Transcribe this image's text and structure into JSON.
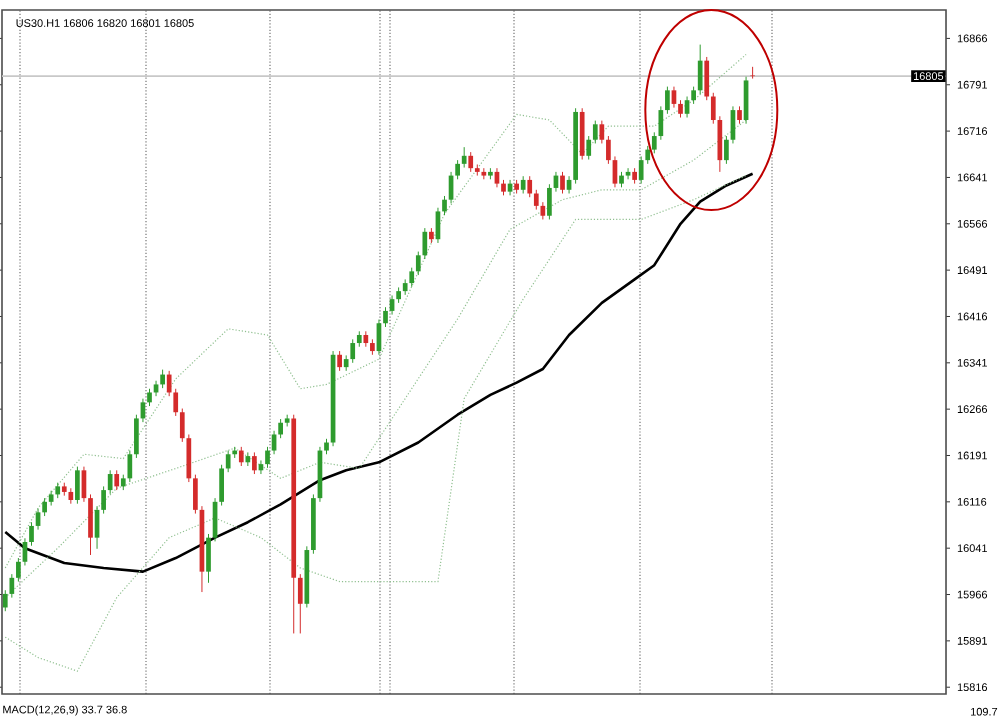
{
  "chart_data": {
    "type": "candlestick",
    "title": "US30.H1 16806 16820 16801 16805",
    "annotations": [
      "MACD(12,26,9) 33.7 36.8",
      "109.7"
    ],
    "categories": [
      null,
      null,
      null,
      null,
      null,
      null,
      null,
      null,
      null,
      null,
      null,
      null,
      null,
      null,
      null,
      null,
      null,
      null,
      null,
      null,
      null,
      null,
      null,
      null,
      null,
      null,
      null,
      null,
      null,
      null,
      null,
      null,
      null,
      null,
      null,
      null,
      null,
      null,
      null,
      null,
      null,
      null,
      null,
      null,
      null,
      null,
      null,
      null,
      null,
      null,
      null,
      null,
      null,
      null,
      null,
      null,
      null,
      null,
      null,
      null,
      null,
      null,
      null,
      null,
      null,
      null,
      null,
      null,
      null,
      null,
      null,
      null,
      null,
      null,
      null,
      null,
      null,
      null,
      null,
      null,
      null,
      null,
      null,
      null,
      null,
      null,
      null,
      null,
      null,
      null,
      null,
      null,
      null,
      null,
      null,
      null,
      null,
      null,
      null,
      null,
      null,
      null,
      null,
      null,
      null,
      null,
      null,
      null,
      null,
      null,
      null,
      null,
      null,
      null,
      null,
      null,
      null,
      null,
      null,
      null,
      null,
      null,
      null,
      null,
      null,
      null,
      null,
      null,
      null,
      null,
      null,
      null,
      null,
      null,
      null,
      null,
      null,
      null,
      null,
      null,
      null,
      null,
      null,
      null
    ],
    "ylim": [
      15805,
      16912
    ],
    "yticks": [
      15816,
      15891,
      15966,
      16041,
      16116,
      16191,
      16266,
      16341,
      16416,
      16491,
      16566,
      16641,
      16716,
      16791,
      16866
    ],
    "ref_lines": [
      {
        "axis": "y",
        "value": 16805,
        "label": "16805",
        "color": "#c8c8c8"
      }
    ],
    "ohlc": [
      [
        15945,
        15973,
        15939,
        15967
      ],
      [
        15967,
        15999,
        15961,
        15993
      ],
      [
        15993,
        16025,
        15987,
        16019
      ],
      [
        16019,
        16057,
        16013,
        16051
      ],
      [
        16051,
        16083,
        16045,
        16077
      ],
      [
        16077,
        16105,
        16071,
        16099
      ],
      [
        16099,
        16122,
        16093,
        16116
      ],
      [
        16116,
        16134,
        16110,
        16128
      ],
      [
        16128,
        16147,
        16122,
        16141
      ],
      [
        16141,
        16147,
        16126,
        16132
      ],
      [
        16132,
        16138,
        16113,
        16119
      ],
      [
        16119,
        16173,
        16113,
        16167
      ],
      [
        16167,
        16173,
        16116,
        16122
      ],
      [
        16122,
        16128,
        16030,
        16058
      ],
      [
        16058,
        16109,
        16040,
        16103
      ],
      [
        16103,
        16141,
        16097,
        16135
      ],
      [
        16135,
        16167,
        16129,
        16161
      ],
      [
        16161,
        16167,
        16135,
        16141
      ],
      [
        16141,
        16160,
        16135,
        16154
      ],
      [
        16154,
        16199,
        16148,
        16193
      ],
      [
        16193,
        16257,
        16187,
        16251
      ],
      [
        16251,
        16283,
        16245,
        16277
      ],
      [
        16277,
        16299,
        16271,
        16293
      ],
      [
        16293,
        16312,
        16287,
        16306
      ],
      [
        16306,
        16330,
        16300,
        16322
      ],
      [
        16322,
        16328,
        16287,
        16293
      ],
      [
        16293,
        16299,
        16255,
        16261
      ],
      [
        16261,
        16267,
        16213,
        16219
      ],
      [
        16219,
        16225,
        16148,
        16154
      ],
      [
        16154,
        16160,
        16097,
        16103
      ],
      [
        16103,
        16109,
        15970,
        16003
      ],
      [
        16003,
        16064,
        15985,
        16058
      ],
      [
        16058,
        16122,
        16052,
        16116
      ],
      [
        16116,
        16176,
        16110,
        16170
      ],
      [
        16170,
        16199,
        16164,
        16193
      ],
      [
        16193,
        16205,
        16187,
        16199
      ],
      [
        16199,
        16205,
        16174,
        16180
      ],
      [
        16180,
        16196,
        16174,
        16190
      ],
      [
        16190,
        16196,
        16161,
        16167
      ],
      [
        16167,
        16183,
        16161,
        16177
      ],
      [
        16177,
        16205,
        16171,
        16199
      ],
      [
        16199,
        16231,
        16193,
        16225
      ],
      [
        16225,
        16250,
        16219,
        16244
      ],
      [
        16244,
        16257,
        16238,
        16251
      ],
      [
        16251,
        16257,
        15903,
        15993
      ],
      [
        15993,
        15999,
        15903,
        15951
      ],
      [
        15951,
        16044,
        15945,
        16038
      ],
      [
        16038,
        16128,
        16032,
        16122
      ],
      [
        16122,
        16205,
        16116,
        16199
      ],
      [
        16199,
        16218,
        16193,
        16212
      ],
      [
        16212,
        16360,
        16206,
        16354
      ],
      [
        16354,
        16360,
        16328,
        16334
      ],
      [
        16334,
        16353,
        16328,
        16347
      ],
      [
        16347,
        16379,
        16341,
        16373
      ],
      [
        16373,
        16392,
        16367,
        16386
      ],
      [
        16386,
        16392,
        16367,
        16373
      ],
      [
        16373,
        16379,
        16354,
        16360
      ],
      [
        16360,
        16411,
        16354,
        16405
      ],
      [
        16405,
        16431,
        16399,
        16425
      ],
      [
        16425,
        16450,
        16419,
        16444
      ],
      [
        16444,
        16463,
        16438,
        16457
      ],
      [
        16457,
        16476,
        16451,
        16470
      ],
      [
        16470,
        16495,
        16464,
        16489
      ],
      [
        16489,
        16521,
        16483,
        16515
      ],
      [
        16515,
        16559,
        16509,
        16553
      ],
      [
        16553,
        16559,
        16535,
        16541
      ],
      [
        16541,
        16592,
        16535,
        16586
      ],
      [
        16586,
        16611,
        16580,
        16605
      ],
      [
        16605,
        16650,
        16599,
        16644
      ],
      [
        16644,
        16669,
        16638,
        16663
      ],
      [
        16663,
        16690,
        16657,
        16676
      ],
      [
        16676,
        16682,
        16650,
        16656
      ],
      [
        16656,
        16662,
        16644,
        16650
      ],
      [
        16650,
        16656,
        16638,
        16644
      ],
      [
        16644,
        16656,
        16638,
        16650
      ],
      [
        16650,
        16656,
        16625,
        16631
      ],
      [
        16631,
        16637,
        16612,
        16618
      ],
      [
        16618,
        16637,
        16612,
        16631
      ],
      [
        16631,
        16637,
        16615,
        16621
      ],
      [
        16621,
        16643,
        16615,
        16637
      ],
      [
        16637,
        16643,
        16609,
        16615
      ],
      [
        16615,
        16621,
        16589,
        16595
      ],
      [
        16595,
        16601,
        16573,
        16579
      ],
      [
        16579,
        16630,
        16573,
        16624
      ],
      [
        16624,
        16650,
        16618,
        16644
      ],
      [
        16644,
        16650,
        16615,
        16621
      ],
      [
        16621,
        16643,
        16615,
        16637
      ],
      [
        16637,
        16753,
        16631,
        16747
      ],
      [
        16747,
        16753,
        16670,
        16676
      ],
      [
        16676,
        16708,
        16670,
        16702
      ],
      [
        16702,
        16733,
        16696,
        16727
      ],
      [
        16727,
        16733,
        16696,
        16702
      ],
      [
        16702,
        16708,
        16663,
        16669
      ],
      [
        16669,
        16675,
        16625,
        16631
      ],
      [
        16631,
        16650,
        16625,
        16644
      ],
      [
        16644,
        16656,
        16638,
        16650
      ],
      [
        16650,
        16656,
        16631,
        16637
      ],
      [
        16637,
        16675,
        16631,
        16669
      ],
      [
        16669,
        16692,
        16663,
        16686
      ],
      [
        16686,
        16714,
        16680,
        16708
      ],
      [
        16708,
        16756,
        16702,
        16750
      ],
      [
        16750,
        16788,
        16744,
        16782
      ],
      [
        16782,
        16788,
        16754,
        16760
      ],
      [
        16760,
        16766,
        16738,
        16744
      ],
      [
        16744,
        16772,
        16738,
        16766
      ],
      [
        16766,
        16788,
        16760,
        16782
      ],
      [
        16782,
        16856,
        16776,
        16830
      ],
      [
        16830,
        16836,
        16766,
        16772
      ],
      [
        16772,
        16778,
        16728,
        16734
      ],
      [
        16734,
        16740,
        16650,
        16669
      ],
      [
        16669,
        16708,
        16663,
        16702
      ],
      [
        16702,
        16756,
        16696,
        16750
      ],
      [
        16750,
        16756,
        16728,
        16734
      ],
      [
        16734,
        16804,
        16728,
        16798
      ],
      [
        16806,
        16820,
        16801,
        16805
      ],
      null,
      null,
      null,
      null,
      null,
      null,
      null,
      null,
      null,
      null,
      null,
      null,
      null,
      null,
      null,
      null,
      null,
      null,
      null,
      null,
      null,
      null,
      null,
      null,
      null,
      null,
      null,
      null,
      null
    ],
    "colors": [
      "#2e9b2e",
      "#2e9b2e",
      "#2e9b2e",
      "#2e9b2e",
      "#2e9b2e",
      "#2e9b2e",
      "#2e9b2e",
      "#2e9b2e",
      "#2e9b2e",
      "#d42b2b",
      "#d42b2b",
      "#2e9b2e",
      "#d42b2b",
      "#d42b2b",
      "#2e9b2e",
      "#2e9b2e",
      "#2e9b2e",
      "#d42b2b",
      "#2e9b2e",
      "#2e9b2e",
      "#2e9b2e",
      "#2e9b2e",
      "#2e9b2e",
      "#2e9b2e",
      "#2e9b2e",
      "#d42b2b",
      "#d42b2b",
      "#d42b2b",
      "#d42b2b",
      "#d42b2b",
      "#d42b2b",
      "#2e9b2e",
      "#2e9b2e",
      "#2e9b2e",
      "#2e9b2e",
      "#2e9b2e",
      "#d42b2b",
      "#2e9b2e",
      "#d42b2b",
      "#2e9b2e",
      "#2e9b2e",
      "#2e9b2e",
      "#2e9b2e",
      "#2e9b2e",
      "#d42b2b",
      "#d42b2b",
      "#2e9b2e",
      "#2e9b2e",
      "#2e9b2e",
      "#2e9b2e",
      "#2e9b2e",
      "#d42b2b",
      "#2e9b2e",
      "#2e9b2e",
      "#2e9b2e",
      "#d42b2b",
      "#d42b2b",
      "#2e9b2e",
      "#2e9b2e",
      "#2e9b2e",
      "#2e9b2e",
      "#2e9b2e",
      "#2e9b2e",
      "#2e9b2e",
      "#2e9b2e",
      "#d42b2b",
      "#2e9b2e",
      "#2e9b2e",
      "#2e9b2e",
      "#2e9b2e",
      "#2e9b2e",
      "#d42b2b",
      "#d42b2b",
      "#d42b2b",
      "#2e9b2e",
      "#d42b2b",
      "#d42b2b",
      "#2e9b2e",
      "#d42b2b",
      "#2e9b2e",
      "#d42b2b",
      "#d42b2b",
      "#d42b2b",
      "#2e9b2e",
      "#2e9b2e",
      "#d42b2b",
      "#2e9b2e",
      "#2e9b2e",
      "#d42b2b",
      "#2e9b2e",
      "#2e9b2e",
      "#d42b2b",
      "#d42b2b",
      "#d42b2b",
      "#2e9b2e",
      "#2e9b2e",
      "#d42b2b",
      "#2e9b2e",
      "#2e9b2e",
      "#2e9b2e",
      "#2e9b2e",
      "#2e9b2e",
      "#d42b2b",
      "#d42b2b",
      "#2e9b2e",
      "#2e9b2e",
      "#2e9b2e",
      "#d42b2b",
      "#d42b2b",
      "#d42b2b",
      "#2e9b2e",
      "#2e9b2e",
      "#d42b2b",
      "#2e9b2e",
      "#d42b2b",
      null,
      null,
      null,
      null,
      null,
      null,
      null,
      null,
      null,
      null,
      null,
      null,
      null,
      null,
      null,
      null,
      null,
      null,
      null,
      null,
      null,
      null,
      null,
      null,
      null,
      null,
      null,
      null,
      null
    ],
    "series": [
      {
        "type": "line",
        "color": "#000000",
        "values": [
          16067,
          null,
          null,
          16041,
          null,
          null,
          null,
          null,
          null,
          16017,
          null,
          null,
          null,
          null,
          null,
          16009,
          null,
          null,
          null,
          null,
          null,
          16003,
          null,
          null,
          null,
          null,
          16025,
          null,
          null,
          null,
          null,
          null,
          16058,
          null,
          null,
          null,
          null,
          16083,
          null,
          null,
          null,
          null,
          16112,
          null,
          null,
          null,
          null,
          null,
          16151,
          null,
          null,
          null,
          16167,
          null,
          null,
          null,
          null,
          16180,
          null,
          null,
          null,
          null,
          null,
          16212,
          null,
          null,
          null,
          null,
          null,
          16257,
          null,
          null,
          null,
          null,
          16289,
          null,
          null,
          null,
          16309,
          null,
          null,
          null,
          16331,
          null,
          null,
          null,
          16386,
          null,
          null,
          null,
          null,
          16438,
          null,
          null,
          null,
          null,
          16476,
          null,
          null,
          16499,
          null,
          null,
          null,
          16566,
          null,
          null,
          16602,
          null,
          null,
          null,
          16628,
          null,
          null,
          null,
          16647,
          null,
          null,
          null,
          null,
          null,
          null,
          null,
          null,
          null,
          null,
          null,
          null,
          null,
          null,
          null,
          null,
          null,
          null,
          null,
          null,
          null,
          null,
          null,
          null,
          null,
          null,
          null,
          null,
          null
        ]
      },
      {
        "type": "line",
        "color": "#8fbf8f",
        "line_style": "dotted",
        "values": [
          16009,
          null,
          null,
          null,
          null,
          16106,
          null,
          null,
          null,
          null,
          null,
          null,
          16193,
          null,
          null,
          null,
          null,
          null,
          16186,
          null,
          null,
          null,
          null,
          null,
          null,
          null,
          16315,
          null,
          null,
          null,
          null,
          null,
          null,
          null,
          16396,
          null,
          null,
          null,
          null,
          null,
          16386,
          null,
          null,
          null,
          null,
          16299,
          null,
          null,
          null,
          16306,
          null,
          null,
          null,
          null,
          null,
          null,
          null,
          16347,
          null,
          null,
          null,
          null,
          null,
          null,
          null,
          null,
          null,
          16582,
          null,
          null,
          null,
          null,
          null,
          null,
          null,
          null,
          null,
          null,
          16743,
          null,
          null,
          null,
          null,
          16734,
          null,
          null,
          null,
          null,
          16679,
          null,
          null,
          null,
          16724,
          null,
          null,
          null,
          null,
          null,
          null,
          16724,
          null,
          null,
          null,
          null,
          null,
          16766,
          null,
          null,
          null,
          null,
          null,
          null,
          null,
          16840,
          null,
          null,
          null,
          null,
          null,
          null,
          null,
          null,
          null,
          null,
          null,
          null,
          null,
          null,
          null,
          null,
          null,
          null,
          null,
          null,
          null,
          null,
          null,
          null,
          null,
          null,
          null,
          null,
          null,
          null
        ]
      },
      {
        "type": "line",
        "color": "#8fbf8f",
        "line_style": "dotted",
        "values": [
          15961,
          null,
          null,
          null,
          null,
          null,
          null,
          null,
          16041,
          null,
          null,
          null,
          null,
          null,
          null,
          null,
          null,
          16138,
          null,
          null,
          null,
          null,
          null,
          null,
          null,
          null,
          16170,
          null,
          null,
          null,
          null,
          null,
          null,
          null,
          null,
          16203,
          null,
          null,
          null,
          null,
          null,
          null,
          16154,
          null,
          null,
          null,
          null,
          null,
          16180,
          null,
          null,
          null,
          null,
          null,
          16170,
          null,
          null,
          null,
          null,
          null,
          16267,
          null,
          null,
          null,
          null,
          null,
          null,
          null,
          null,
          16412,
          null,
          null,
          null,
          null,
          null,
          null,
          null,
          16557,
          null,
          null,
          null,
          null,
          null,
          null,
          null,
          16605,
          null,
          null,
          null,
          null,
          null,
          16621,
          null,
          null,
          null,
          null,
          null,
          16621,
          null,
          null,
          null,
          null,
          null,
          null,
          null,
          16669,
          null,
          null,
          null,
          null,
          null,
          null,
          null,
          16734,
          null,
          null,
          null,
          null,
          null,
          null,
          null,
          null,
          null,
          null,
          null,
          null,
          null,
          null,
          null,
          null,
          null,
          null,
          null,
          null,
          null,
          null,
          null,
          null,
          null,
          null,
          null,
          null,
          null,
          null
        ]
      },
      {
        "type": "line",
        "color": "#8fbf8f",
        "line_style": "dotted",
        "values": [
          15897,
          null,
          null,
          null,
          null,
          15864,
          null,
          null,
          null,
          null,
          null,
          15842,
          null,
          null,
          null,
          null,
          null,
          15961,
          null,
          null,
          null,
          null,
          null,
          null,
          null,
          16058,
          null,
          null,
          null,
          null,
          null,
          null,
          16090,
          null,
          null,
          null,
          null,
          null,
          null,
          16058,
          null,
          null,
          null,
          null,
          null,
          16009,
          null,
          null,
          null,
          null,
          null,
          15987,
          null,
          null,
          null,
          null,
          null,
          15987,
          null,
          null,
          null,
          null,
          null,
          null,
          null,
          null,
          15987,
          null,
          null,
          null,
          16283,
          null,
          null,
          null,
          null,
          null,
          null,
          null,
          null,
          16444,
          null,
          null,
          null,
          null,
          null,
          null,
          null,
          16573,
          null,
          null,
          null,
          null,
          null,
          null,
          null,
          null,
          null,
          16573,
          null,
          null,
          null,
          null,
          null,
          null,
          null,
          16605,
          null,
          null,
          null,
          null,
          null,
          null,
          null,
          16644,
          null,
          null,
          null,
          null,
          null,
          null,
          null,
          null,
          null,
          null,
          null,
          null,
          null,
          null,
          null,
          null,
          null,
          null,
          null,
          null,
          null,
          null,
          null,
          null,
          null,
          null,
          null,
          null,
          null,
          null
        ]
      }
    ]
  }
}
